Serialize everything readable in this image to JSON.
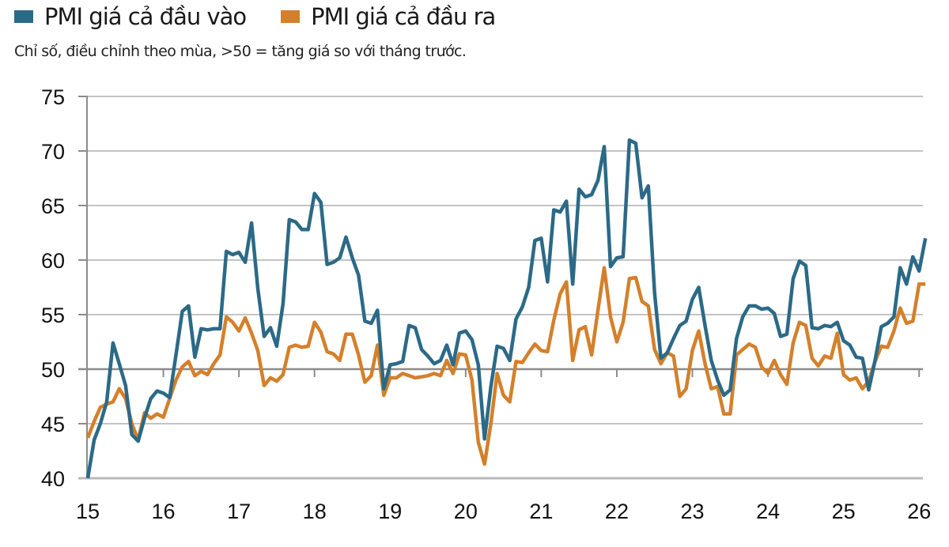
{
  "legend": [
    {
      "label": "PMI giá cả đầu vào",
      "color": "#2b6a87"
    },
    {
      "label": "PMI giá cả đầu ra",
      "color": "#d4802b"
    }
  ],
  "subtitle": "Chỉ số, điều chỉnh theo mùa, >50 = tăng giá so với tháng trước.",
  "chart_data": {
    "type": "line",
    "title": "",
    "subtitle": "Chỉ số, điều chỉnh theo mùa, >50 = tăng giá so với tháng trước.",
    "xlabel": "",
    "ylabel": "",
    "ylim": [
      40,
      75
    ],
    "yticks": [
      40,
      45,
      50,
      55,
      60,
      65,
      70,
      75
    ],
    "xticks": [
      "15",
      "16",
      "17",
      "18",
      "19",
      "20",
      "21",
      "22",
      "23",
      "24",
      "25",
      "26"
    ],
    "x_start": "2015-01",
    "x_frequency": "monthly",
    "grid": true,
    "legend_position": "top-left",
    "series": [
      {
        "name": "PMI giá cả đầu vào",
        "color": "#2b6a87",
        "values": [
          40.0,
          43.5,
          45.0,
          47.0,
          52.4,
          50.5,
          48.5,
          44.0,
          43.4,
          45.5,
          47.3,
          48.0,
          47.8,
          47.4,
          51.3,
          55.3,
          55.8,
          51.1,
          53.7,
          53.6,
          53.7,
          53.7,
          60.8,
          60.5,
          60.7,
          59.8,
          63.4,
          57.4,
          53.0,
          53.8,
          52.1,
          56.0,
          63.7,
          63.5,
          62.8,
          62.8,
          66.1,
          65.3,
          59.6,
          59.8,
          60.2,
          62.1,
          60.2,
          58.6,
          54.4,
          54.2,
          55.4,
          48.2,
          50.4,
          50.5,
          50.7,
          54.0,
          53.8,
          51.8,
          51.2,
          50.5,
          50.8,
          52.2,
          50.4,
          53.3,
          53.5,
          52.7,
          50.4,
          43.6,
          48.4,
          52.1,
          51.9,
          50.8,
          54.6,
          55.7,
          57.5,
          61.8,
          62.0,
          58.0,
          64.6,
          64.4,
          65.4,
          57.8,
          66.5,
          65.8,
          66.0,
          67.3,
          70.4,
          59.4,
          60.2,
          60.3,
          71.0,
          70.7,
          65.7,
          66.8,
          57.0,
          51.0,
          51.5,
          52.8,
          54.0,
          54.4,
          56.4,
          57.5,
          54.0,
          50.8,
          49.0,
          47.6,
          48.1,
          52.8,
          54.8,
          55.8,
          55.8,
          55.5,
          55.6,
          55.1,
          53.0,
          53.2,
          58.3,
          59.9,
          59.5,
          53.8,
          53.7,
          54.0,
          53.9,
          54.3,
          52.6,
          52.2,
          51.1,
          51.0,
          48.1,
          50.8,
          53.9,
          54.2,
          54.8,
          59.3,
          57.8,
          60.3,
          59.0,
          62.0
        ]
      },
      {
        "name": "PMI giá cả đầu ra",
        "color": "#d4802b",
        "values": [
          43.7,
          45.2,
          46.5,
          46.8,
          47.0,
          48.2,
          47.3,
          45.0,
          43.5,
          46.0,
          45.5,
          45.9,
          45.6,
          47.3,
          49.0,
          50.2,
          50.7,
          49.4,
          49.8,
          49.5,
          50.5,
          51.3,
          54.8,
          54.3,
          53.5,
          54.7,
          53.3,
          51.7,
          48.5,
          49.2,
          48.9,
          49.5,
          52.0,
          52.2,
          52.0,
          52.1,
          54.3,
          53.4,
          51.6,
          51.4,
          50.8,
          53.2,
          53.2,
          51.3,
          48.8,
          49.4,
          52.2,
          47.6,
          49.2,
          49.2,
          49.6,
          49.4,
          49.2,
          49.3,
          49.4,
          49.6,
          49.4,
          50.8,
          49.6,
          51.4,
          51.3,
          49.0,
          43.3,
          41.3,
          45.0,
          49.6,
          47.6,
          47.0,
          50.7,
          50.6,
          51.5,
          52.3,
          51.7,
          51.6,
          54.5,
          56.9,
          58.0,
          50.8,
          53.6,
          53.9,
          51.3,
          55.4,
          59.3,
          54.8,
          52.5,
          54.3,
          58.3,
          58.4,
          56.2,
          55.8,
          51.8,
          50.5,
          51.5,
          51.2,
          47.5,
          48.2,
          51.7,
          53.5,
          50.5,
          48.2,
          48.4,
          45.9,
          45.9,
          51.3,
          51.8,
          52.3,
          52.0,
          50.2,
          49.6,
          50.8,
          49.5,
          48.6,
          52.4,
          54.3,
          54.0,
          51.0,
          50.3,
          51.2,
          51.0,
          53.3,
          49.5,
          49.0,
          49.2,
          48.2,
          48.9,
          50.7,
          52.1,
          52.0,
          53.5,
          55.6,
          54.2,
          54.4,
          57.8,
          57.8
        ]
      }
    ]
  }
}
